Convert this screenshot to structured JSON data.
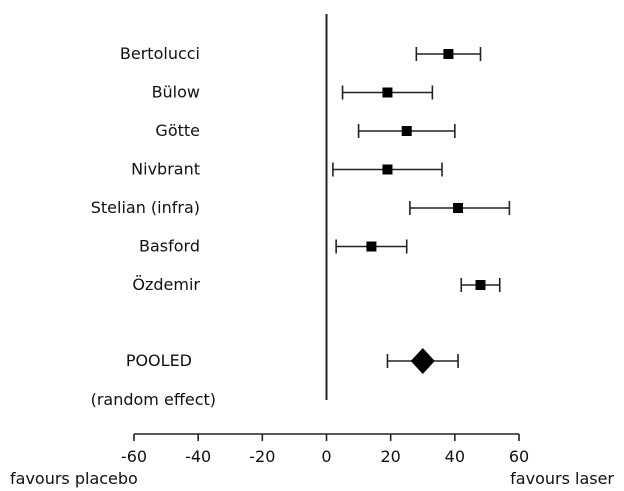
{
  "chart_data": {
    "type": "forest",
    "xlim": [
      -60,
      60
    ],
    "xticks": [
      -60,
      -40,
      -20,
      0,
      20,
      40,
      60
    ],
    "reference_line": 0,
    "studies": [
      {
        "label": "Bertolucci",
        "estimate": 38,
        "lower": 28,
        "upper": 48
      },
      {
        "label": "Bülow",
        "estimate": 19,
        "lower": 5,
        "upper": 33
      },
      {
        "label": "Götte",
        "estimate": 25,
        "lower": 10,
        "upper": 40
      },
      {
        "label": "Nivbrant",
        "estimate": 19,
        "lower": 2,
        "upper": 36
      },
      {
        "label": "Stelian (infra)",
        "estimate": 41,
        "lower": 26,
        "upper": 57
      },
      {
        "label": "Basford",
        "estimate": 14,
        "lower": 3,
        "upper": 25
      },
      {
        "label": "Özdemir",
        "estimate": 48,
        "lower": 42,
        "upper": 54
      }
    ],
    "pooled": {
      "label": "POOLED",
      "sublabel": "(random effect)",
      "estimate": 30,
      "lower": 19,
      "upper": 41
    },
    "xlabel_left": "favours placebo",
    "xlabel_right": "favours laser"
  }
}
